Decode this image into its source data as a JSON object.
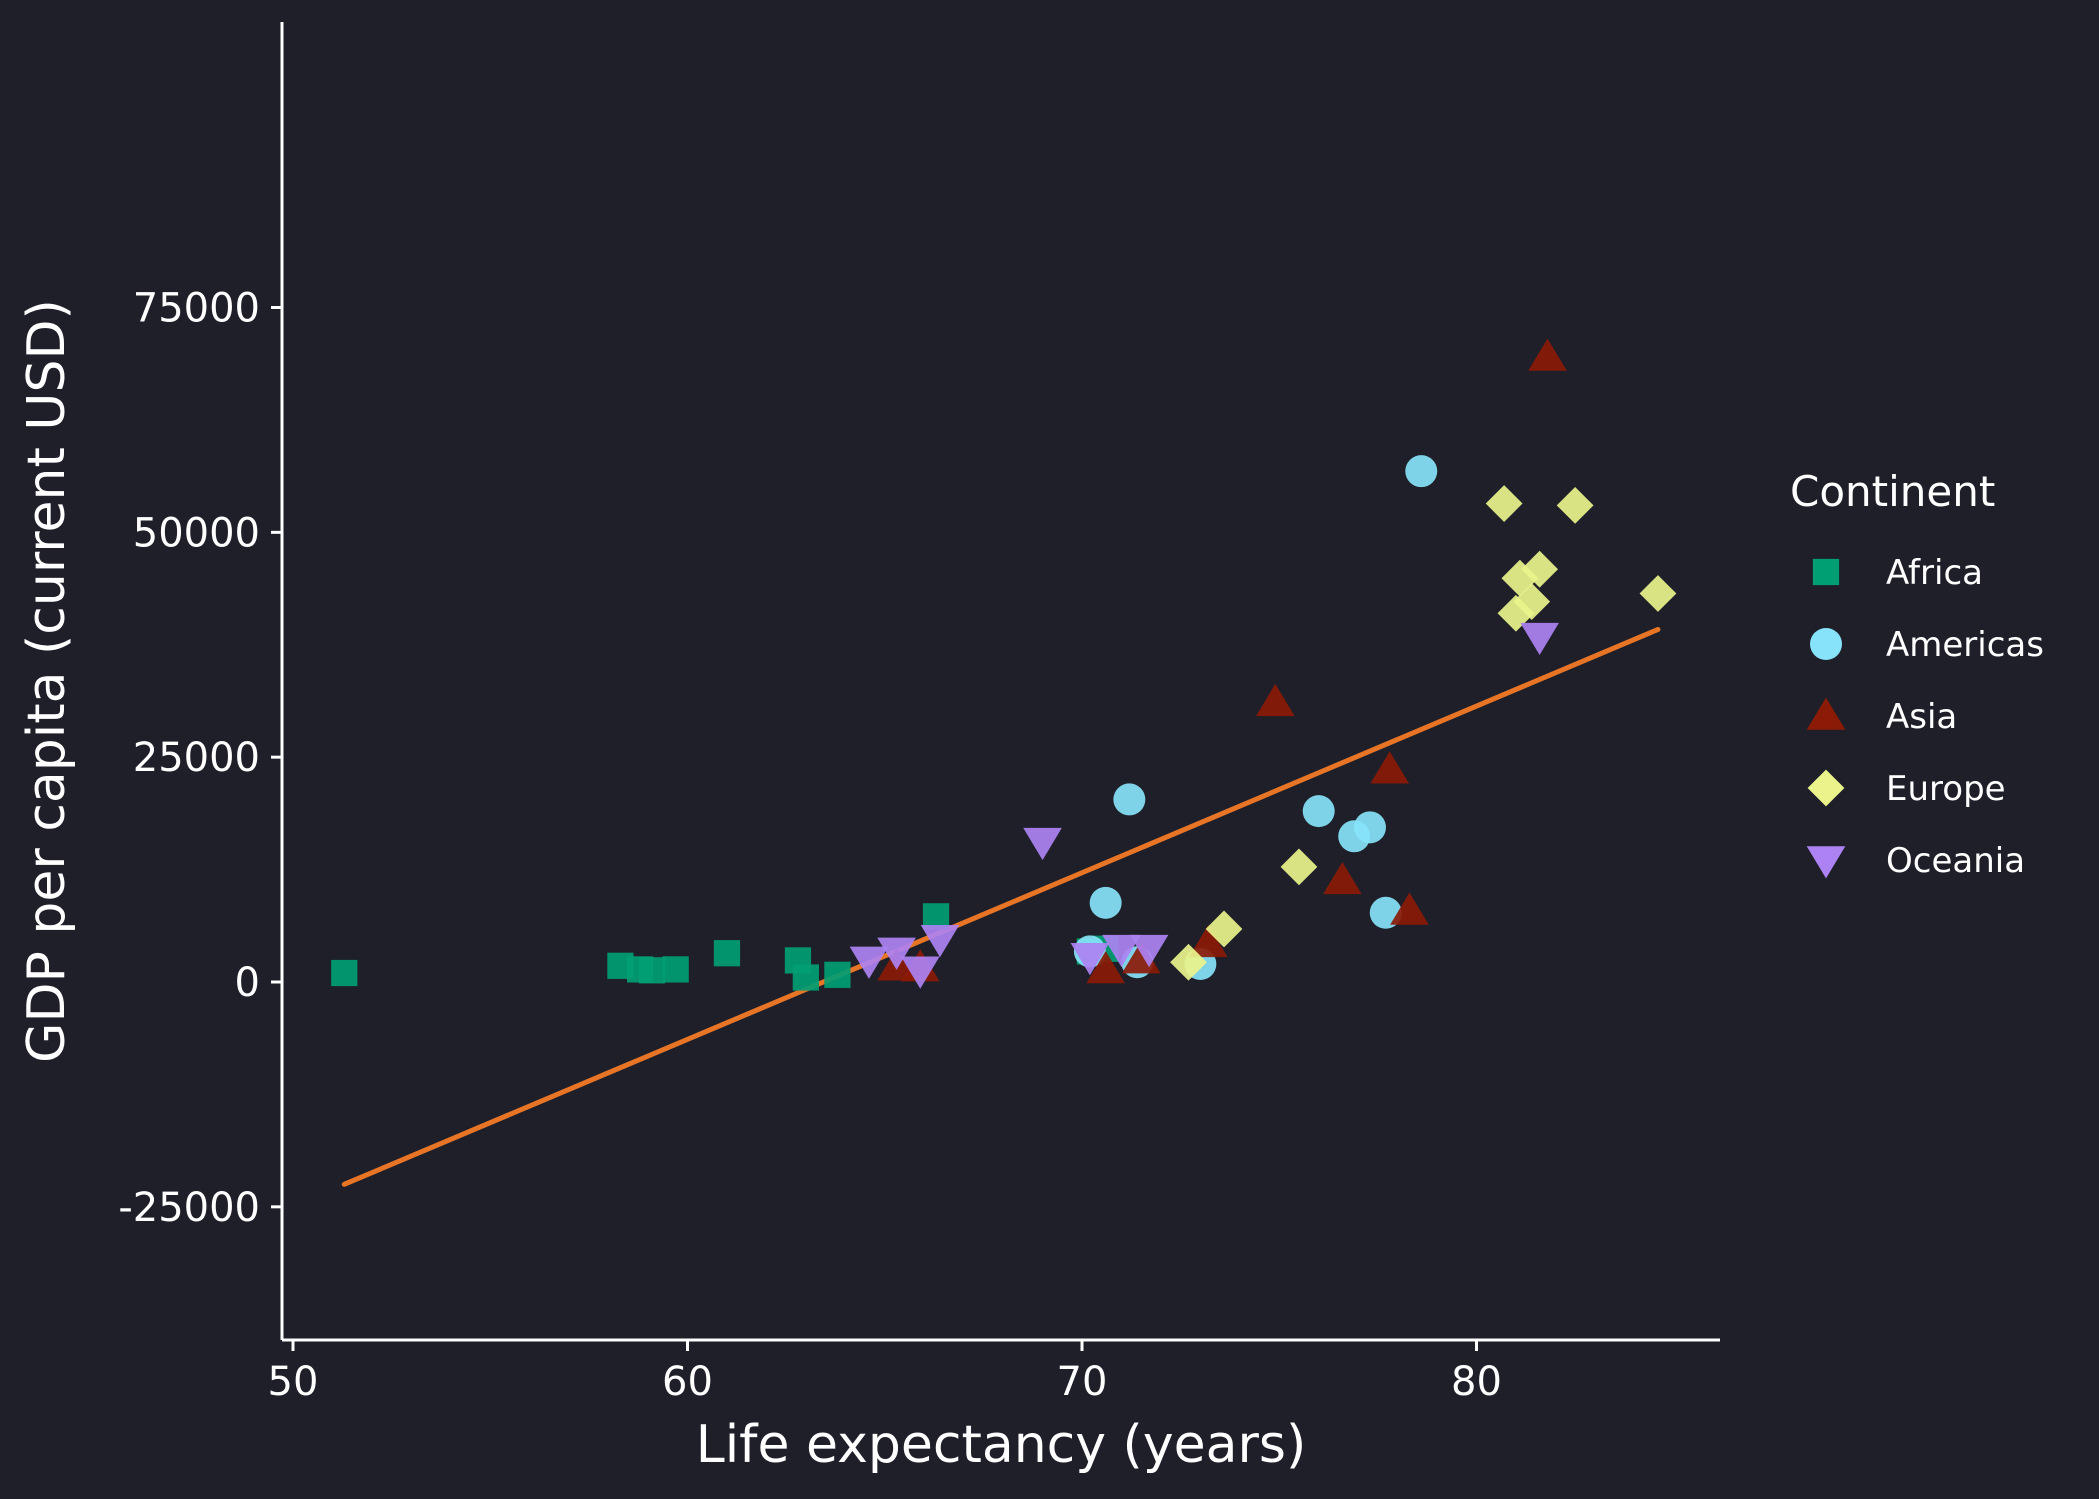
{
  "chart_data": {
    "type": "scatter",
    "title": "",
    "xlabel": "Life expectancy (years)",
    "ylabel": "GDP per capita (current USD)",
    "xlim": [
      50,
      86
    ],
    "ylim": [
      -30000,
      80000
    ],
    "x_ticks": [
      50,
      60,
      70,
      80
    ],
    "y_ticks": [
      -25000,
      0,
      25000,
      50000,
      75000
    ],
    "grid": false,
    "legend": {
      "title": "Continent",
      "position": "right"
    },
    "series": [
      {
        "name": "Africa",
        "marker": "square",
        "color": "#009e73",
        "points": [
          [
            51.3,
            1000
          ],
          [
            58.3,
            1800
          ],
          [
            58.8,
            1400
          ],
          [
            59.1,
            1300
          ],
          [
            59.7,
            1400
          ],
          [
            61.0,
            3200
          ],
          [
            62.8,
            2400
          ],
          [
            63.0,
            500
          ],
          [
            63.8,
            800
          ],
          [
            66.3,
            7300
          ],
          [
            70.2,
            3400
          ],
          [
            70.6,
            3700
          ]
        ]
      },
      {
        "name": "Americas",
        "marker": "circle",
        "color": "#87e3f9",
        "points": [
          [
            78.6,
            56800
          ],
          [
            71.2,
            20300
          ],
          [
            76.0,
            19000
          ],
          [
            77.3,
            17200
          ],
          [
            76.9,
            16200
          ],
          [
            70.6,
            8800
          ],
          [
            77.7,
            7700
          ],
          [
            71.4,
            2200
          ],
          [
            73.0,
            2000
          ],
          [
            70.2,
            3400
          ]
        ]
      },
      {
        "name": "Asia",
        "marker": "triangle-up",
        "color": "#8b1a06",
        "points": [
          [
            81.8,
            69500
          ],
          [
            74.9,
            31100
          ],
          [
            77.8,
            23600
          ],
          [
            76.6,
            11300
          ],
          [
            78.3,
            7900
          ],
          [
            73.2,
            4300
          ],
          [
            70.6,
            1400
          ],
          [
            71.5,
            2500
          ],
          [
            65.3,
            1700
          ],
          [
            65.9,
            1600
          ]
        ]
      },
      {
        "name": "Europe",
        "marker": "diamond",
        "color": "#eaf48b",
        "points": [
          [
            80.7,
            53200
          ],
          [
            82.5,
            53000
          ],
          [
            81.1,
            44900
          ],
          [
            81.6,
            45900
          ],
          [
            81.4,
            42300
          ],
          [
            81.0,
            41000
          ],
          [
            84.6,
            43200
          ],
          [
            75.5,
            12800
          ],
          [
            73.6,
            5900
          ],
          [
            72.7,
            2200
          ]
        ]
      },
      {
        "name": "Oceania",
        "marker": "triangle-down",
        "color": "#ad82f2",
        "points": [
          [
            81.6,
            38400
          ],
          [
            69.0,
            15600
          ],
          [
            66.4,
            4800
          ],
          [
            65.3,
            3400
          ],
          [
            64.6,
            2400
          ],
          [
            65.9,
            1300
          ],
          [
            70.2,
            2800
          ],
          [
            71.0,
            3700
          ],
          [
            71.7,
            3700
          ]
        ]
      }
    ],
    "trend_line": {
      "color": "#e87526",
      "from": [
        51.3,
        -22500
      ],
      "to": [
        84.6,
        39200
      ]
    }
  },
  "colors": {
    "background": "#1e1f29",
    "axis": "#ffffff",
    "text": "#ffffff"
  }
}
